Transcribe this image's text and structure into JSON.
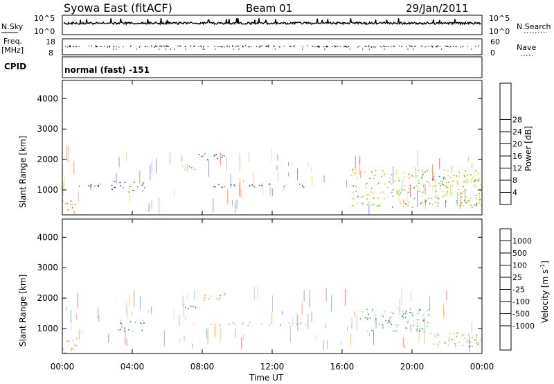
{
  "header": {
    "station": "Syowa East (fitACF)",
    "beam": "Beam 01",
    "date": "29/Jan/2011"
  },
  "noise_panel": {
    "left_label": "N.Sky",
    "right_label": "N.Search",
    "top_tick": "10^5",
    "bottom_tick": "10^0"
  },
  "freq_panel": {
    "left_label": "Freq.",
    "left_unit": "[MHz]",
    "left_ticks": [
      "18",
      "8"
    ],
    "right_label": "Nave",
    "right_ticks": [
      "60",
      "0"
    ]
  },
  "cpid": {
    "label": "CPID",
    "value": "normal (fast) -151"
  },
  "x_axis": {
    "title": "Time UT",
    "ticks": [
      "00:00",
      "04:00",
      "08:00",
      "12:00",
      "16:00",
      "20:00",
      "00:00"
    ]
  },
  "power_panel": {
    "ylabel": "Slant Range [km]",
    "yticks": [
      "1000",
      "2000",
      "3000",
      "4000"
    ],
    "colorbar_title": "Power [dB]",
    "colorbar_ticks": [
      "4",
      "8",
      "12",
      "16",
      "20",
      "24",
      "28"
    ],
    "colors": [
      "#1a1aff",
      "#2a4ab8",
      "#2f7a3a",
      "#3fb24f",
      "#b8d03a",
      "#ffc000",
      "#ff8c00",
      "#ff5a00",
      "#ff2a00",
      "#e60000"
    ]
  },
  "velocity_panel": {
    "ylabel": "Slant Range [km]",
    "yticks": [
      "1000",
      "2000",
      "3000",
      "4000"
    ],
    "colorbar_title": "Velocity [m s",
    "colorbar_title_sup": "-1",
    "colorbar_ticks": [
      "1000",
      "500",
      "100",
      "25",
      "-25",
      "-100",
      "-500",
      "-1000"
    ],
    "colors": [
      "#2233bb",
      "#2a66a8",
      "#2f8a56",
      "#4cb848",
      "#b8b8b8",
      "#b8b8b8",
      "#ff9900",
      "#ff6a00",
      "#ff3300",
      "#ee0000"
    ]
  },
  "chart_data": [
    {
      "type": "heatmap",
      "title": "Power [dB]",
      "xlabel": "Time UT",
      "ylabel": "Slant Range [km]",
      "xlim": [
        0,
        24
      ],
      "ylim": [
        180,
        4600
      ],
      "grid": false,
      "colorbar_range": [
        0,
        30
      ],
      "regions": [
        {
          "t": [
            0.0,
            0.8
          ],
          "r": [
            200,
            700
          ],
          "value": 18
        },
        {
          "t": [
            0.8,
            3.2
          ],
          "r": [
            1100,
            1250
          ],
          "value": 6
        },
        {
          "t": [
            2.8,
            4.8
          ],
          "r": [
            950,
            1300
          ],
          "value": 7
        },
        {
          "t": [
            6.8,
            7.6
          ],
          "r": [
            1650,
            1850
          ],
          "value": 14
        },
        {
          "t": [
            7.6,
            9.3
          ],
          "r": [
            1950,
            2200
          ],
          "value": 6
        },
        {
          "t": [
            8.5,
            14.0
          ],
          "r": [
            1100,
            1220
          ],
          "value": 5
        },
        {
          "t": [
            16.5,
            24.0
          ],
          "r": [
            450,
            1700
          ],
          "value": 14
        }
      ]
    },
    {
      "type": "heatmap",
      "title": "Velocity [m s-1]",
      "xlabel": "Time UT",
      "ylabel": "Slant Range [km]",
      "xlim": [
        0,
        24
      ],
      "ylim": [
        180,
        4600
      ],
      "grid": false,
      "colorbar_range": [
        -1000,
        1000
      ],
      "regions": [
        {
          "t": [
            0.0,
            0.8
          ],
          "r": [
            200,
            800
          ],
          "value": 300
        },
        {
          "t": [
            3.0,
            4.8
          ],
          "r": [
            900,
            1300
          ],
          "value": -300
        },
        {
          "t": [
            6.8,
            7.6
          ],
          "r": [
            1650,
            1850
          ],
          "value": -400
        },
        {
          "t": [
            7.6,
            9.3
          ],
          "r": [
            1950,
            2200
          ],
          "value": 50
        },
        {
          "t": [
            8.5,
            14.0
          ],
          "r": [
            1100,
            1220
          ],
          "value": 0
        },
        {
          "t": [
            17.0,
            21.0
          ],
          "r": [
            900,
            1700
          ],
          "value": -300
        },
        {
          "t": [
            21.0,
            24.0
          ],
          "r": [
            400,
            900
          ],
          "value": 60
        }
      ]
    }
  ]
}
